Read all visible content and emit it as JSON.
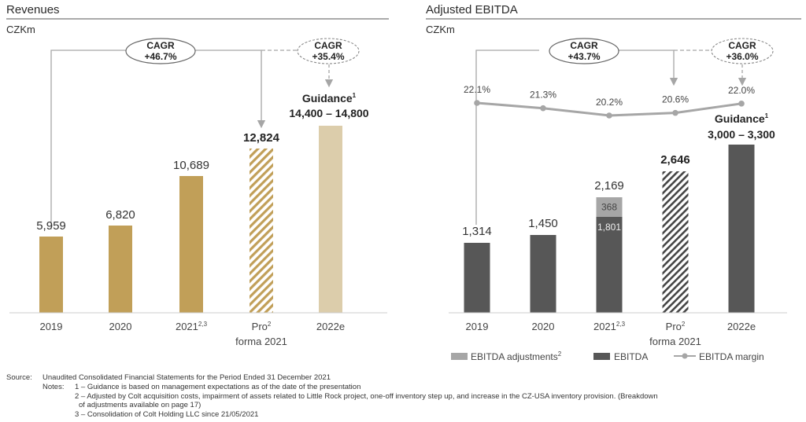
{
  "left": {
    "title": "Revenues",
    "unit": "CZKm",
    "cagr1": {
      "label": "CAGR",
      "value": "+46.7%"
    },
    "cagr2": {
      "label": "CAGR",
      "value": "+35.4%"
    },
    "guidance_label": "Guidance",
    "guidance_sup": "1",
    "guidance_range": "14,400 – 14,800"
  },
  "right": {
    "title": "Adjusted EBITDA",
    "unit": "CZKm",
    "cagr1": {
      "label": "CAGR",
      "value": "+43.7%"
    },
    "cagr2": {
      "label": "CAGR",
      "value": "+36.0%"
    },
    "guidance_label": "Guidance",
    "guidance_sup": "1",
    "guidance_range": "3,000 – 3,300",
    "legend": {
      "adjustments": "EBITDA adjustments",
      "adjustments_sup": "2",
      "ebitda": "EBITDA",
      "margin": "EBITDA margin"
    }
  },
  "chart_data": [
    {
      "type": "bar",
      "title": "Revenues",
      "unit": "CZKm",
      "categories": [
        "2019",
        "2020",
        "2021",
        "Pro forma 2021",
        "2022e"
      ],
      "category_sups": [
        "",
        "",
        "2,3",
        "2",
        ""
      ],
      "values": [
        5959,
        6820,
        10689,
        12824,
        14600
      ],
      "value_labels": [
        "5,959",
        "6,820",
        "10,689",
        "12,824",
        ""
      ],
      "styles": [
        "solid",
        "solid",
        "solid",
        "hatched",
        "light"
      ],
      "colors": {
        "solid": "#c19f58",
        "light": "#dccdab"
      },
      "ylim": [
        0,
        16000
      ]
    },
    {
      "type": "bar",
      "title": "Adjusted EBITDA",
      "unit": "CZKm",
      "categories": [
        "2019",
        "2020",
        "2021",
        "Pro forma 2021",
        "2022e"
      ],
      "category_sups": [
        "",
        "",
        "2,3",
        "2",
        ""
      ],
      "series": [
        {
          "name": "EBITDA",
          "values": [
            1314,
            1450,
            1801,
            2646,
            3150
          ]
        },
        {
          "name": "EBITDA adjustments",
          "values": [
            0,
            0,
            368,
            0,
            0
          ]
        }
      ],
      "totals": [
        "1,314",
        "1,450",
        "2,169",
        "2,646",
        ""
      ],
      "segment_labels": {
        "ebitda_2021": "1,801",
        "adjustments_2021": "368"
      },
      "margin": {
        "name": "EBITDA margin",
        "values": [
          22.1,
          21.3,
          20.2,
          20.6,
          22.0
        ],
        "labels": [
          "22.1%",
          "21.3%",
          "20.2%",
          "20.6%",
          "22.0%"
        ]
      },
      "styles": [
        "solid",
        "solid",
        "solid",
        "hatched",
        "solid"
      ],
      "colors": {
        "ebitda": "#575757",
        "adjustments": "#a6a6a6",
        "margin": "#a6a6a6"
      },
      "ylim": [
        0,
        4300
      ]
    }
  ],
  "footnotes": {
    "source_label": "Source:",
    "source": "Unaudited Consolidated Financial Statements for the Period Ended 31 December 2021",
    "notes_label": "Notes:",
    "note1": "1 – Guidance is based on management expectations as of the date of the presentation",
    "note2a": "2 – Adjusted by Colt acquisition costs, impairment of assets related to Little Rock project, one-off inventory step up, and increase in the CZ-USA inventory provision. (Breakdown",
    "note2b": "of adjustments available on page 17)",
    "note3": "3 – Consolidation of Colt Holding LLC since 21/05/2021"
  }
}
